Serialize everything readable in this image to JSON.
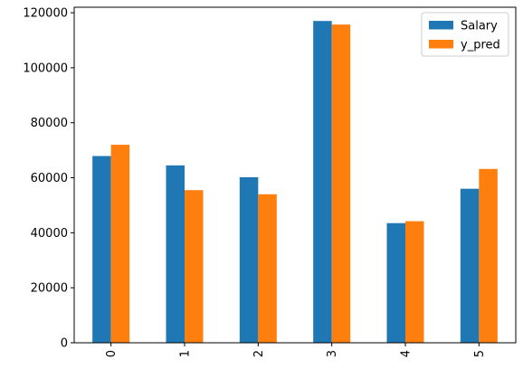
{
  "chart_data": {
    "type": "bar",
    "categories": [
      "0",
      "1",
      "2",
      "3",
      "4",
      "5"
    ],
    "series": [
      {
        "name": "Salary",
        "values": [
          67900,
          64500,
          60200,
          117000,
          43500,
          56000
        ],
        "color": "#1f77b4"
      },
      {
        "name": "y_pred",
        "values": [
          72000,
          55500,
          54000,
          115700,
          44200,
          63200
        ],
        "color": "#ff7f0e"
      }
    ],
    "yticks": [
      0,
      20000,
      40000,
      60000,
      80000,
      100000,
      120000
    ],
    "ylim": [
      0,
      122000
    ],
    "legend_position": "top-right",
    "grid": false,
    "xtick_rotation": 90
  }
}
